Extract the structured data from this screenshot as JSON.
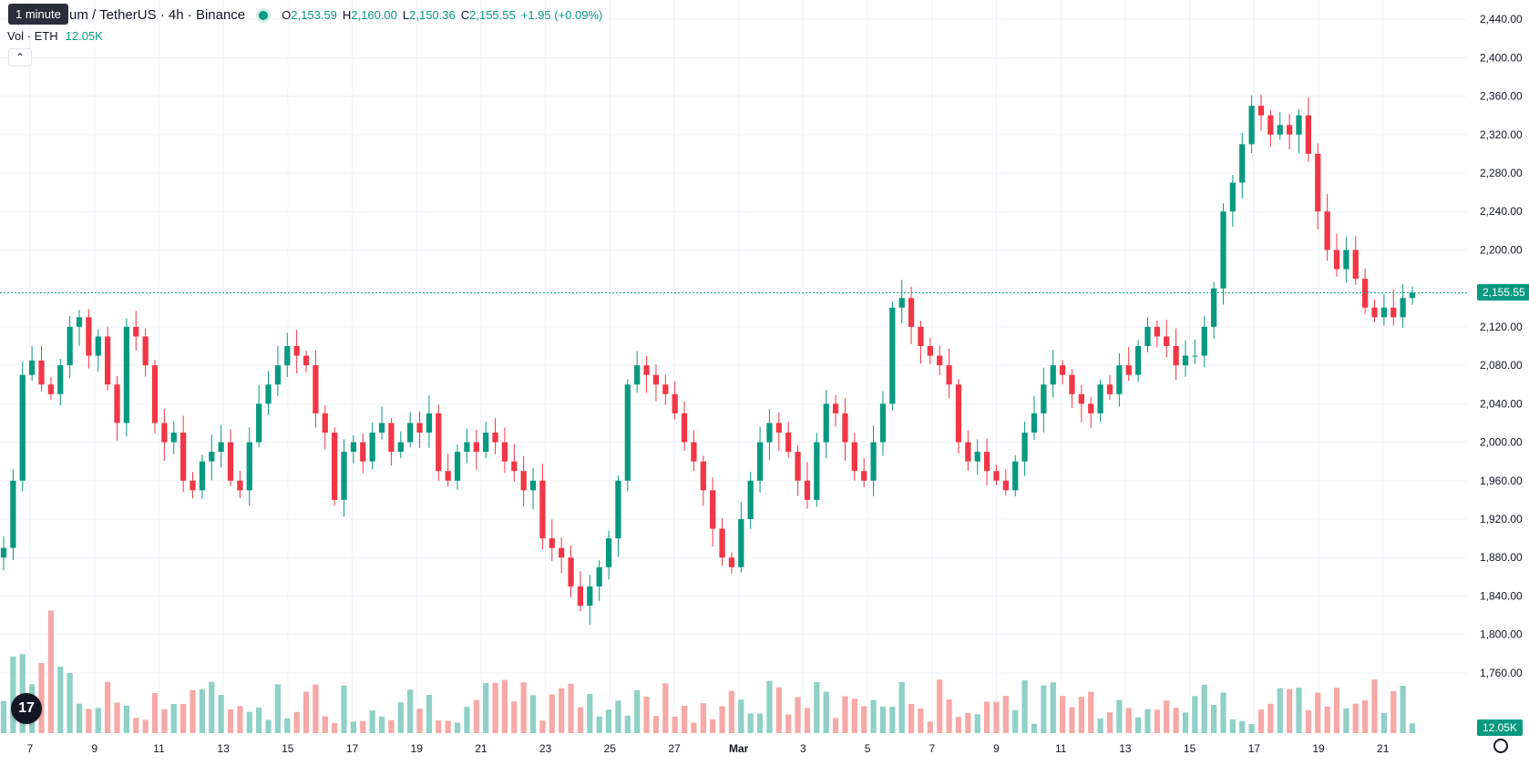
{
  "legend": {
    "symbol": "um / TetherUS · 4h · Binance",
    "open_label": "O",
    "open": "2,153.59",
    "high_label": "H",
    "high": "2,160.00",
    "low_label": "L",
    "low": "2,150.36",
    "close_label": "C",
    "close": "2,155.55",
    "change": "+1.95 (+0.09%)"
  },
  "volume": {
    "label": "Vol · ETH",
    "value": "12.05K"
  },
  "tooltip": "1 minute",
  "current_price": "2,155.55",
  "current_volume": "12.05K",
  "logo_text": "17",
  "colors": {
    "up": "#089981",
    "down": "#f23645",
    "up_vol": "#8fd1c6",
    "down_vol": "#f7a9a7",
    "grid": "#f0f3fa"
  },
  "chart_data": {
    "type": "candlestick",
    "y_ticks": [
      "2,440.00",
      "2,400.00",
      "2,360.00",
      "2,320.00",
      "2,280.00",
      "2,240.00",
      "2,200.00",
      "2,160.00",
      "2,120.00",
      "2,080.00",
      "2,040.00",
      "2,000.00",
      "1,960.00",
      "1,920.00",
      "1,880.00",
      "1,840.00",
      "1,800.00",
      "1,760.00"
    ],
    "x_ticks": [
      "7",
      "9",
      "11",
      "13",
      "15",
      "17",
      "19",
      "21",
      "23",
      "25",
      "27",
      "Mar",
      "3",
      "5",
      "7",
      "9",
      "11",
      "13",
      "15",
      "17",
      "19",
      "21"
    ],
    "ylim": [
      1740,
      2460
    ],
    "last_price": 2155.55,
    "series_close": [
      1890,
      1960,
      2070,
      2085,
      2060,
      2050,
      2080,
      2120,
      2130,
      2090,
      2110,
      2060,
      2020,
      2120,
      2110,
      2080,
      2020,
      2000,
      2010,
      1960,
      1950,
      1980,
      1990,
      2000,
      1960,
      1950,
      2000,
      2040,
      2060,
      2080,
      2100,
      2090,
      2080,
      2030,
      2010,
      1940,
      1990,
      2000,
      1980,
      2010,
      2020,
      1990,
      2000,
      2020,
      2010,
      2030,
      1970,
      1960,
      1990,
      2000,
      1990,
      2010,
      2000,
      1980,
      1970,
      1950,
      1960,
      1900,
      1890,
      1880,
      1850,
      1830,
      1850,
      1870,
      1900,
      1960,
      2060,
      2080,
      2070,
      2060,
      2050,
      2030,
      2000,
      1980,
      1950,
      1910,
      1880,
      1870,
      1920,
      1960,
      2000,
      2020,
      2010,
      1990,
      1960,
      1940,
      2000,
      2040,
      2030,
      2000,
      1970,
      1960,
      2000,
      2040,
      2140,
      2150,
      2120,
      2100,
      2090,
      2080,
      2060,
      2000,
      1980,
      1990,
      1970,
      1960,
      1950,
      1980,
      2010,
      2030,
      2060,
      2080,
      2070,
      2050,
      2040,
      2030,
      2060,
      2050,
      2080,
      2070,
      2100,
      2120,
      2110,
      2100,
      2080,
      2090,
      2090,
      2120,
      2160,
      2240,
      2270,
      2310,
      2350,
      2340,
      2320,
      2330,
      2320,
      2340,
      2300,
      2240,
      2200,
      2180,
      2200,
      2170,
      2140,
      2130,
      2140,
      2130,
      2150,
      2155.55
    ],
    "series_volume_hint": "volume bars along bottom, heights in thousands not labelled"
  }
}
